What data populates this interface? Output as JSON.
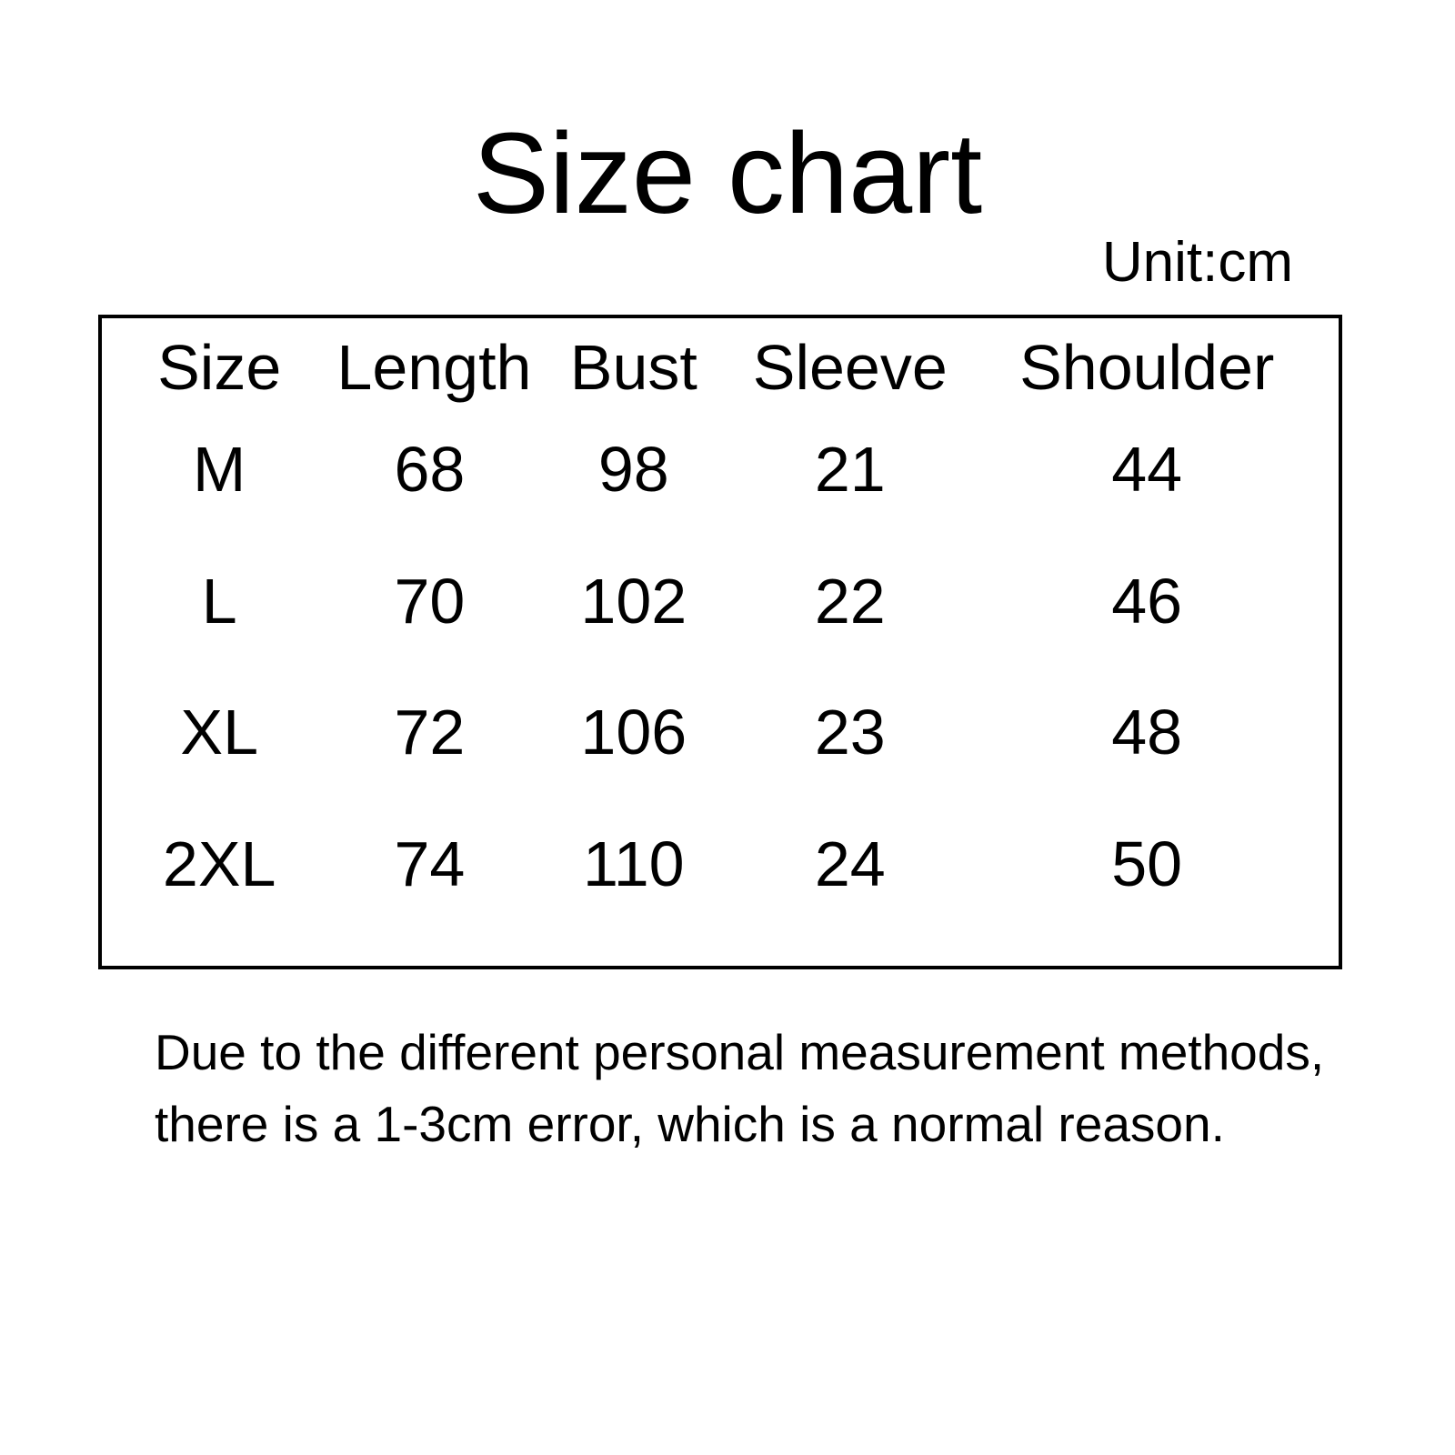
{
  "page": {
    "title": "Size chart",
    "unit_label": "Unit:cm"
  },
  "colors": {
    "background": "#ffffff",
    "text": "#000000",
    "table_border": "#000000"
  },
  "table": {
    "headers": [
      "Size",
      "Length",
      "Bust",
      "Sleeve",
      "Shoulder"
    ],
    "rows": [
      {
        "size": "M",
        "length": "68",
        "bust": "98",
        "sleeve": "21",
        "shoulder": "44"
      },
      {
        "size": "L",
        "length": "70",
        "bust": "102",
        "sleeve": "22",
        "shoulder": "46"
      },
      {
        "size": "XL",
        "length": "72",
        "bust": "106",
        "sleeve": "23",
        "shoulder": "48"
      },
      {
        "size": "2XL",
        "length": "74",
        "bust": "110",
        "sleeve": "24",
        "shoulder": "50"
      }
    ]
  },
  "footer": {
    "note_line1": "Due to the different personal measurement methods,",
    "note_line2": "there is a 1-3cm error, which is a normal reason."
  }
}
